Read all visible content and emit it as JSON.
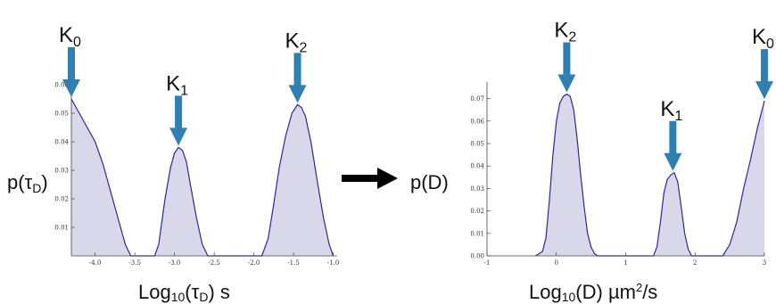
{
  "colors": {
    "fill": "#d9d7ea",
    "line": "#2b2b8c",
    "arrow": "#2f7fb1",
    "big_arrow": "#000000"
  },
  "chart_data": [
    {
      "type": "area",
      "title": "",
      "ylabel": {
        "main": "p(τ",
        "sub": "D",
        "end": ")"
      },
      "xlabel": {
        "main": "Log",
        "sub": "10",
        "mid": "(τ",
        "sub2": "D",
        "end": ")  s"
      },
      "xlim": [
        -4.3,
        -0.95
      ],
      "ylim": [
        0,
        0.06
      ],
      "xticks": [
        "-4.0",
        "-3.5",
        "-3.0",
        "-2.5",
        "-2.0",
        "-1.5",
        "-1.0"
      ],
      "xtick_values": [
        -4.0,
        -3.5,
        -3.0,
        -2.5,
        -2.0,
        -1.5,
        -1.0
      ],
      "yticks": [
        "0.01",
        "0.02",
        "0.03",
        "0.04",
        "0.05",
        "0.06"
      ],
      "ytick_values": [
        0.01,
        0.02,
        0.03,
        0.04,
        0.05,
        0.06
      ],
      "grid": false,
      "series": [
        {
          "x": [
            -4.3,
            -4.2,
            -4.1,
            -4.0,
            -3.9,
            -3.8,
            -3.7,
            -3.62,
            -3.55,
            -3.25,
            -3.2,
            -3.12,
            -3.05,
            -3.0,
            -2.95,
            -2.9,
            -2.85,
            -2.8,
            -2.72,
            -2.65,
            -2.58,
            -1.9,
            -1.82,
            -1.75,
            -1.68,
            -1.6,
            -1.52,
            -1.45,
            -1.4,
            -1.35,
            -1.28,
            -1.2,
            -1.12,
            -1.05,
            -1.0
          ],
          "y": [
            0.055,
            0.05,
            0.045,
            0.04,
            0.032,
            0.022,
            0.012,
            0.004,
            0.0,
            0.0,
            0.004,
            0.02,
            0.031,
            0.036,
            0.038,
            0.037,
            0.033,
            0.025,
            0.013,
            0.004,
            0.0,
            0.0,
            0.006,
            0.018,
            0.031,
            0.042,
            0.05,
            0.053,
            0.052,
            0.049,
            0.04,
            0.026,
            0.013,
            0.004,
            0.0
          ]
        }
      ],
      "annotations": [
        {
          "label": "K",
          "sub": "0",
          "x": -4.3,
          "y": 0.055
        },
        {
          "label": "K",
          "sub": "1",
          "x": -2.95,
          "y": 0.038
        },
        {
          "label": "K",
          "sub": "2",
          "x": -1.45,
          "y": 0.053
        }
      ]
    },
    {
      "type": "area",
      "title": "",
      "ylabel": {
        "main": "p(D)"
      },
      "xlabel": {
        "main": "Log",
        "sub": "10",
        "mid": "(D)  µm",
        "sup": "2",
        "end": "/s"
      },
      "xlim": [
        -1,
        3
      ],
      "ylim": [
        0,
        0.075
      ],
      "xticks": [
        "-1",
        "0",
        "1",
        "2",
        "3"
      ],
      "xtick_values": [
        -1,
        0,
        1,
        2,
        3
      ],
      "yticks": [
        "0.00",
        "0.01",
        "0.02",
        "0.03",
        "0.04",
        "0.05",
        "0.06",
        "0.07"
      ],
      "ytick_values": [
        0.0,
        0.01,
        0.02,
        0.03,
        0.04,
        0.05,
        0.06,
        0.07
      ],
      "grid": false,
      "series": [
        {
          "x": [
            -0.3,
            -0.2,
            -0.15,
            -0.1,
            -0.05,
            0.0,
            0.05,
            0.1,
            0.15,
            0.2,
            0.25,
            0.3,
            0.35,
            0.4,
            0.45,
            0.5,
            0.55,
            0.6,
            0.65,
            1.4,
            1.45,
            1.5,
            1.55,
            1.6,
            1.65,
            1.7,
            1.75,
            1.8,
            1.85,
            1.9,
            1.95,
            2.4,
            2.5,
            2.6,
            2.7,
            2.8,
            2.9,
            3.0
          ],
          "y": [
            0.0,
            0.002,
            0.008,
            0.025,
            0.045,
            0.06,
            0.068,
            0.071,
            0.072,
            0.071,
            0.065,
            0.052,
            0.036,
            0.022,
            0.01,
            0.004,
            0.001,
            0.0,
            0.0,
            0.0,
            0.004,
            0.015,
            0.028,
            0.034,
            0.036,
            0.037,
            0.033,
            0.022,
            0.01,
            0.003,
            0.0,
            0.0,
            0.005,
            0.015,
            0.03,
            0.043,
            0.057,
            0.069
          ]
        }
      ],
      "annotations": [
        {
          "label": "K",
          "sub": "2",
          "x": 0.15,
          "y": 0.072
        },
        {
          "label": "K",
          "sub": "1",
          "x": 1.68,
          "y": 0.037
        },
        {
          "label": "K",
          "sub": "0",
          "x": 3.0,
          "y": 0.069
        }
      ]
    }
  ]
}
